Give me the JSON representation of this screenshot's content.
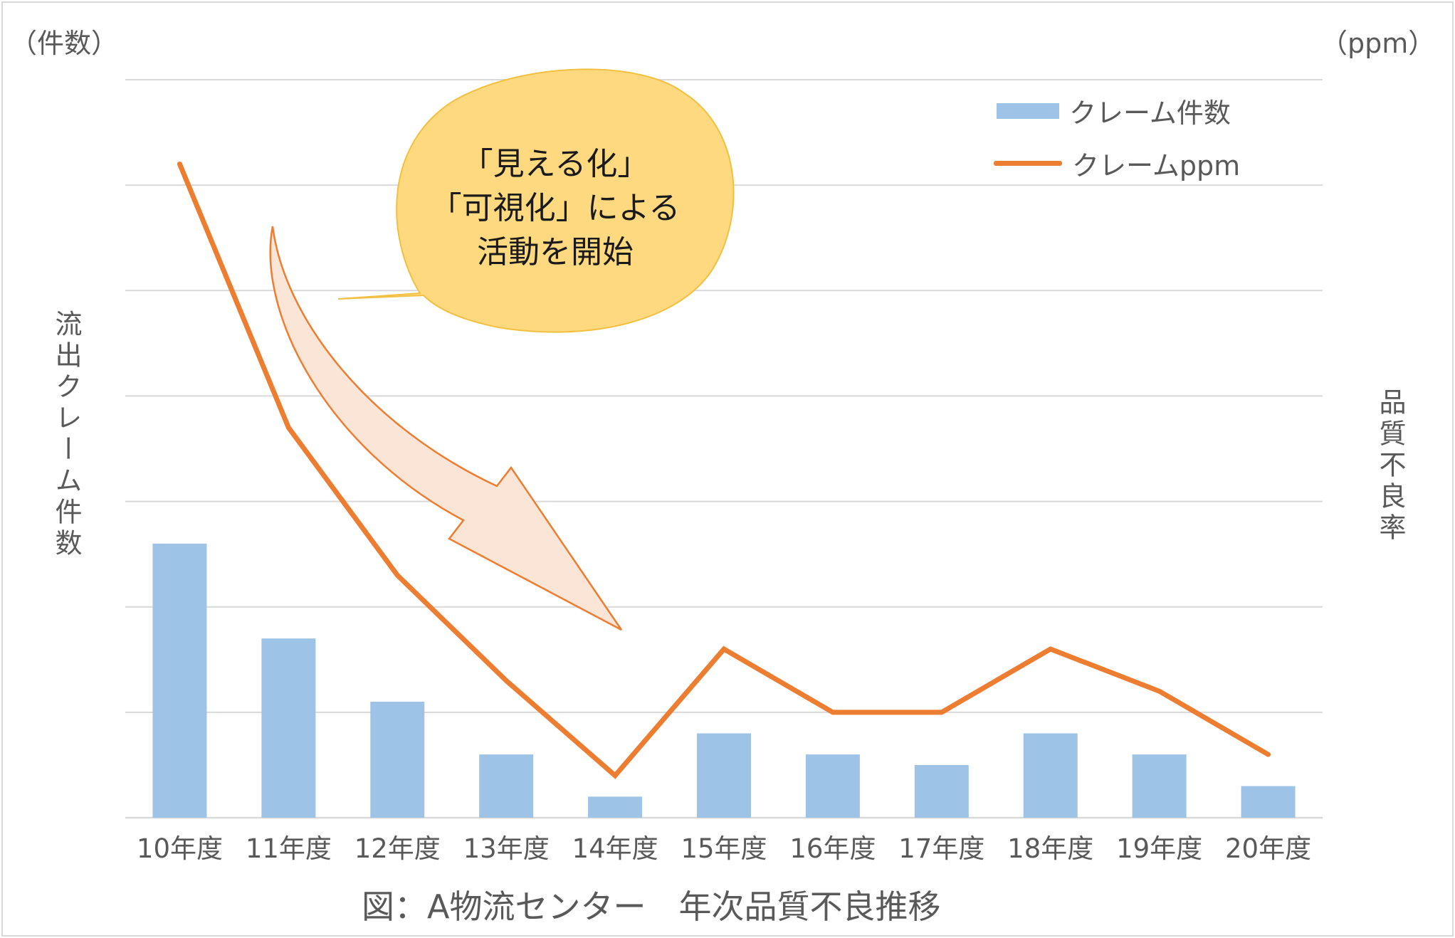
{
  "chart_data": {
    "type": "bar",
    "categories": [
      "10年度",
      "11年度",
      "12年度",
      "13年度",
      "14年度",
      "15年度",
      "16年度",
      "17年度",
      "18年度",
      "19年度",
      "20年度"
    ],
    "series": [
      {
        "name": "クレーム件数",
        "type": "bar",
        "axis": "left",
        "color": "#9dc3e6",
        "values": [
          26,
          17,
          11,
          6,
          2,
          8,
          6,
          5,
          8,
          6,
          3
        ]
      },
      {
        "name": "クレームppm",
        "type": "line",
        "axis": "right",
        "color": "#ed7d31",
        "values": [
          62,
          37,
          23,
          13,
          4,
          16,
          10,
          10,
          16,
          12,
          6
        ]
      }
    ],
    "left_unit": "（件数）",
    "right_unit": "（ppm）",
    "ylabel_left": "流出クレーム件数",
    "ylabel_right": "品質不良率",
    "ylim_left": [
      0,
      70
    ],
    "ylim_right": [
      0,
      70
    ],
    "gridlines": 7,
    "legend": "top-right",
    "annotation_lines": [
      "「見える化」",
      "「可視化」による",
      "活動を開始"
    ],
    "caption": "図：A物流センター　年次品質不良推移"
  }
}
